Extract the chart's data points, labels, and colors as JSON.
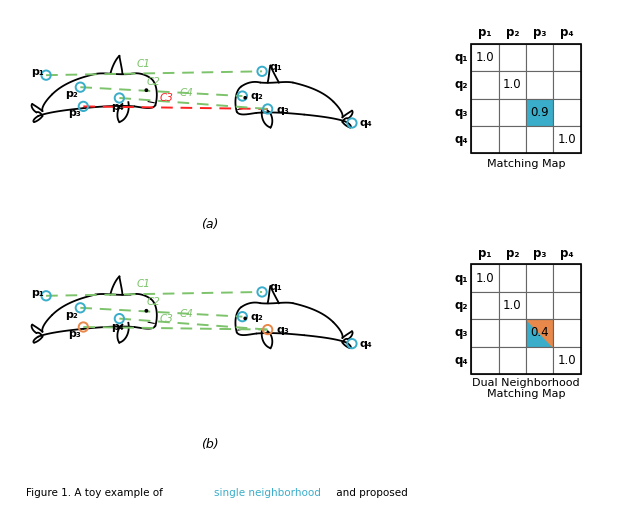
{
  "bg_color": "#FFFFFF",
  "grid_line_color": "#666666",
  "circle_color_teal": "#3AADCA",
  "circle_color_orange": "#E8884A",
  "green_color": "#7DC36B",
  "red_color": "#FF2222",
  "map_a_title": "Matching Map",
  "map_b_title": "Dual Neighborhood\nMatching Map",
  "col_labels": [
    "p₁",
    "p₂",
    "p₃",
    "p₄"
  ],
  "row_labels": [
    "q₁",
    "q₂",
    "q₃",
    "q₄"
  ],
  "map_a_values": [
    [
      0,
      0,
      "1.0"
    ],
    [
      1,
      1,
      "1.0"
    ],
    [
      2,
      2,
      "0.9"
    ],
    [
      3,
      3,
      "1.0"
    ]
  ],
  "map_b_values": [
    [
      0,
      0,
      "1.0"
    ],
    [
      1,
      1,
      "1.0"
    ],
    [
      2,
      2,
      "0.4"
    ],
    [
      3,
      3,
      "1.0"
    ]
  ],
  "map_a_teal_cell": [
    2,
    2
  ],
  "map_b_teal_cell": [
    2,
    2
  ],
  "map_b_orange_cell": [
    2,
    2
  ],
  "caption_black1": "Figure 1. A toy example of ",
  "caption_cyan": "single neighborhood",
  "caption_black2": " and proposed"
}
